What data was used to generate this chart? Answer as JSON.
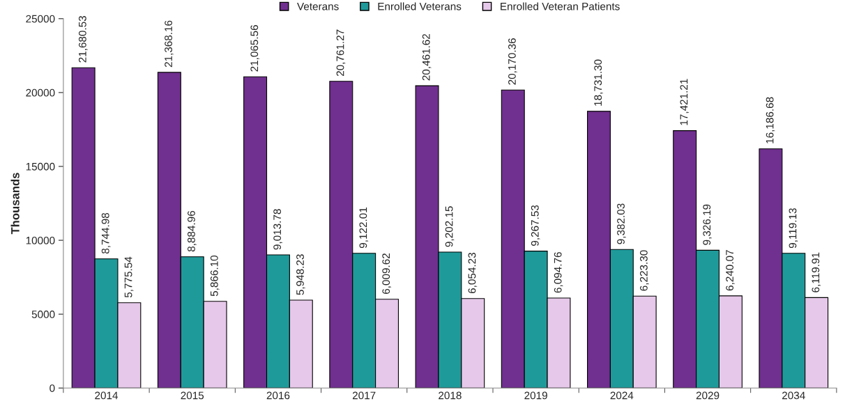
{
  "chart_data": {
    "type": "bar",
    "ylabel": "Thousands",
    "categories": [
      "2014",
      "2015",
      "2016",
      "2017",
      "2018",
      "2019",
      "2024",
      "2029",
      "2034"
    ],
    "series": [
      {
        "name": "Veterans",
        "color": "#70308f",
        "values": [
          21680.53,
          21368.16,
          21065.56,
          20761.27,
          20461.62,
          20170.36,
          18731.3,
          17421.21,
          16186.68
        ],
        "value_labels": [
          "21,680.53",
          "21,368.16",
          "21,065.56",
          "20,761.27",
          "20,461.62",
          "20,170.36",
          "18,731.30",
          "17,421.21",
          "16,186.68"
        ]
      },
      {
        "name": "Enrolled Veterans",
        "color": "#1f9a9a",
        "values": [
          8744.98,
          8884.96,
          9013.78,
          9122.01,
          9202.15,
          9267.53,
          9382.03,
          9326.19,
          9119.13
        ],
        "value_labels": [
          "8,744.98",
          "8,884.96",
          "9,013.78",
          "9,122.01",
          "9,202.15",
          "9,267.53",
          "9,382.03",
          "9,326.19",
          "9,119.13"
        ]
      },
      {
        "name": "Enrolled Veteran Patients",
        "color": "#e6c8ea",
        "values": [
          5775.54,
          5866.1,
          5948.23,
          6009.62,
          6054.23,
          6094.76,
          6223.3,
          6240.07,
          6119.91
        ],
        "value_labels": [
          "5,775.54",
          "5,866.10",
          "5,948.23",
          "6,009.62",
          "6,054.23",
          "6,094.76",
          "6,223.30",
          "6,240.07",
          "6,119.91"
        ]
      }
    ],
    "ylim": [
      0,
      25000
    ],
    "yticks": [
      0,
      5000,
      10000,
      15000,
      20000,
      25000
    ],
    "grid": false,
    "legend": "top"
  }
}
